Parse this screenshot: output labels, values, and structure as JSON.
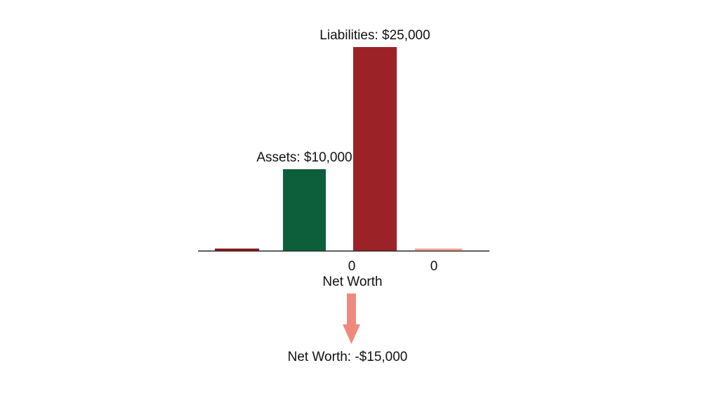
{
  "chart_data": {
    "type": "bar",
    "categories": [
      "",
      "Assets",
      "Liabilities",
      ""
    ],
    "values": [
      0,
      10000,
      25000,
      0
    ],
    "value_labels": [
      "",
      "Assets: $10,000",
      "Liabilities: $25,000",
      ""
    ],
    "tick_labels": [
      "0",
      "0"
    ],
    "center_label": "Net Worth",
    "result_label": "Net Worth: -$15,000",
    "ylim": [
      0,
      25000
    ],
    "grid": false,
    "colors": {
      "stub_left": "#8e1b1b",
      "assets": "#0d5e3a",
      "liabilities": "#9b2226",
      "stub_right": "#f0a08f",
      "arrow": "#ee8a7d",
      "axis": "#222222",
      "text": "#111111"
    }
  }
}
